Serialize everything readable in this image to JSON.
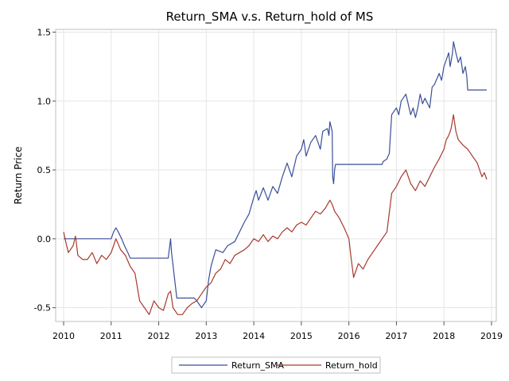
{
  "chart_data": {
    "type": "line",
    "title": "Return_SMA v.s. Return_hold of MS",
    "xlabel": "",
    "ylabel": "Return Price",
    "x_ticks": [
      "2010",
      "2011",
      "2012",
      "2013",
      "2014",
      "2015",
      "2016",
      "2017",
      "2018",
      "2019"
    ],
    "y_ticks": [
      "-0.5",
      "0.0",
      "0.5",
      "1.0",
      "1.5"
    ],
    "xlim": [
      2010.0,
      2019.0
    ],
    "ylim": [
      -0.6,
      1.52
    ],
    "grid": true,
    "legend_position": "bottom",
    "series": [
      {
        "name": "Return_SMA",
        "color": "#3a4f98",
        "points": [
          [
            2010.0,
            0.0
          ],
          [
            2011.0,
            0.0
          ],
          [
            2011.05,
            0.05
          ],
          [
            2011.1,
            0.08
          ],
          [
            2011.15,
            0.05
          ],
          [
            2011.22,
            0.0
          ],
          [
            2011.28,
            -0.05
          ],
          [
            2011.35,
            -0.1
          ],
          [
            2011.4,
            -0.14
          ],
          [
            2011.45,
            -0.14
          ],
          [
            2012.2,
            -0.14
          ],
          [
            2012.25,
            0.0
          ],
          [
            2012.27,
            -0.1
          ],
          [
            2012.32,
            -0.25
          ],
          [
            2012.38,
            -0.43
          ],
          [
            2012.75,
            -0.43
          ],
          [
            2012.8,
            -0.45
          ],
          [
            2012.9,
            -0.5
          ],
          [
            2013.0,
            -0.45
          ],
          [
            2013.05,
            -0.3
          ],
          [
            2013.1,
            -0.2
          ],
          [
            2013.2,
            -0.08
          ],
          [
            2013.35,
            -0.1
          ],
          [
            2013.45,
            -0.05
          ],
          [
            2013.6,
            -0.02
          ],
          [
            2013.7,
            0.05
          ],
          [
            2013.8,
            0.12
          ],
          [
            2013.9,
            0.18
          ],
          [
            2014.0,
            0.3
          ],
          [
            2014.05,
            0.35
          ],
          [
            2014.1,
            0.28
          ],
          [
            2014.2,
            0.37
          ],
          [
            2014.3,
            0.28
          ],
          [
            2014.4,
            0.38
          ],
          [
            2014.5,
            0.33
          ],
          [
            2014.6,
            0.45
          ],
          [
            2014.7,
            0.55
          ],
          [
            2014.8,
            0.45
          ],
          [
            2014.9,
            0.6
          ],
          [
            2015.0,
            0.65
          ],
          [
            2015.05,
            0.72
          ],
          [
            2015.1,
            0.6
          ],
          [
            2015.2,
            0.7
          ],
          [
            2015.3,
            0.75
          ],
          [
            2015.4,
            0.65
          ],
          [
            2015.45,
            0.78
          ],
          [
            2015.55,
            0.8
          ],
          [
            2015.58,
            0.75
          ],
          [
            2015.6,
            0.85
          ],
          [
            2015.65,
            0.78
          ],
          [
            2015.66,
            0.45
          ],
          [
            2015.68,
            0.4
          ],
          [
            2015.7,
            0.5
          ],
          [
            2015.72,
            0.54
          ],
          [
            2016.7,
            0.54
          ],
          [
            2016.72,
            0.56
          ],
          [
            2016.8,
            0.58
          ],
          [
            2016.85,
            0.62
          ],
          [
            2016.9,
            0.9
          ],
          [
            2017.0,
            0.95
          ],
          [
            2017.05,
            0.9
          ],
          [
            2017.1,
            1.0
          ],
          [
            2017.2,
            1.05
          ],
          [
            2017.3,
            0.9
          ],
          [
            2017.35,
            0.95
          ],
          [
            2017.4,
            0.88
          ],
          [
            2017.45,
            0.95
          ],
          [
            2017.5,
            1.05
          ],
          [
            2017.55,
            0.98
          ],
          [
            2017.6,
            1.02
          ],
          [
            2017.7,
            0.95
          ],
          [
            2017.75,
            1.1
          ],
          [
            2017.8,
            1.12
          ],
          [
            2017.9,
            1.2
          ],
          [
            2017.95,
            1.15
          ],
          [
            2018.0,
            1.25
          ],
          [
            2018.05,
            1.3
          ],
          [
            2018.1,
            1.35
          ],
          [
            2018.13,
            1.25
          ],
          [
            2018.18,
            1.35
          ],
          [
            2018.2,
            1.43
          ],
          [
            2018.25,
            1.35
          ],
          [
            2018.3,
            1.28
          ],
          [
            2018.35,
            1.32
          ],
          [
            2018.4,
            1.2
          ],
          [
            2018.45,
            1.25
          ],
          [
            2018.48,
            1.18
          ],
          [
            2018.5,
            1.08
          ],
          [
            2018.9,
            1.08
          ]
        ]
      },
      {
        "name": "Return_hold",
        "color": "#a63a2e",
        "points": [
          [
            2010.0,
            0.05
          ],
          [
            2010.05,
            -0.03
          ],
          [
            2010.1,
            -0.1
          ],
          [
            2010.2,
            -0.05
          ],
          [
            2010.25,
            0.02
          ],
          [
            2010.3,
            -0.12
          ],
          [
            2010.4,
            -0.15
          ],
          [
            2010.5,
            -0.15
          ],
          [
            2010.6,
            -0.1
          ],
          [
            2010.7,
            -0.18
          ],
          [
            2010.8,
            -0.12
          ],
          [
            2010.9,
            -0.15
          ],
          [
            2011.0,
            -0.1
          ],
          [
            2011.05,
            -0.05
          ],
          [
            2011.1,
            0.0
          ],
          [
            2011.2,
            -0.08
          ],
          [
            2011.3,
            -0.12
          ],
          [
            2011.4,
            -0.2
          ],
          [
            2011.5,
            -0.25
          ],
          [
            2011.6,
            -0.45
          ],
          [
            2011.7,
            -0.5
          ],
          [
            2011.8,
            -0.55
          ],
          [
            2011.9,
            -0.45
          ],
          [
            2012.0,
            -0.5
          ],
          [
            2012.1,
            -0.52
          ],
          [
            2012.2,
            -0.4
          ],
          [
            2012.25,
            -0.38
          ],
          [
            2012.3,
            -0.5
          ],
          [
            2012.4,
            -0.55
          ],
          [
            2012.5,
            -0.55
          ],
          [
            2012.6,
            -0.5
          ],
          [
            2012.7,
            -0.47
          ],
          [
            2012.8,
            -0.45
          ],
          [
            2012.9,
            -0.4
          ],
          [
            2013.0,
            -0.35
          ],
          [
            2013.1,
            -0.32
          ],
          [
            2013.2,
            -0.25
          ],
          [
            2013.3,
            -0.22
          ],
          [
            2013.4,
            -0.15
          ],
          [
            2013.5,
            -0.18
          ],
          [
            2013.6,
            -0.12
          ],
          [
            2013.7,
            -0.1
          ],
          [
            2013.8,
            -0.08
          ],
          [
            2013.9,
            -0.05
          ],
          [
            2014.0,
            0.0
          ],
          [
            2014.1,
            -0.02
          ],
          [
            2014.2,
            0.03
          ],
          [
            2014.3,
            -0.02
          ],
          [
            2014.4,
            0.02
          ],
          [
            2014.5,
            0.0
          ],
          [
            2014.6,
            0.05
          ],
          [
            2014.7,
            0.08
          ],
          [
            2014.8,
            0.05
          ],
          [
            2014.9,
            0.1
          ],
          [
            2015.0,
            0.12
          ],
          [
            2015.1,
            0.1
          ],
          [
            2015.2,
            0.15
          ],
          [
            2015.3,
            0.2
          ],
          [
            2015.4,
            0.18
          ],
          [
            2015.5,
            0.22
          ],
          [
            2015.6,
            0.28
          ],
          [
            2015.65,
            0.25
          ],
          [
            2015.7,
            0.2
          ],
          [
            2015.8,
            0.15
          ],
          [
            2015.9,
            0.08
          ],
          [
            2016.0,
            0.0
          ],
          [
            2016.05,
            -0.15
          ],
          [
            2016.1,
            -0.28
          ],
          [
            2016.2,
            -0.18
          ],
          [
            2016.3,
            -0.22
          ],
          [
            2016.4,
            -0.15
          ],
          [
            2016.5,
            -0.1
          ],
          [
            2016.6,
            -0.05
          ],
          [
            2016.7,
            0.0
          ],
          [
            2016.8,
            0.05
          ],
          [
            2016.9,
            0.33
          ],
          [
            2017.0,
            0.38
          ],
          [
            2017.1,
            0.45
          ],
          [
            2017.2,
            0.5
          ],
          [
            2017.3,
            0.4
          ],
          [
            2017.4,
            0.35
          ],
          [
            2017.5,
            0.42
          ],
          [
            2017.6,
            0.38
          ],
          [
            2017.7,
            0.45
          ],
          [
            2017.8,
            0.52
          ],
          [
            2017.9,
            0.58
          ],
          [
            2018.0,
            0.65
          ],
          [
            2018.05,
            0.72
          ],
          [
            2018.1,
            0.75
          ],
          [
            2018.15,
            0.8
          ],
          [
            2018.2,
            0.9
          ],
          [
            2018.25,
            0.78
          ],
          [
            2018.3,
            0.72
          ],
          [
            2018.4,
            0.68
          ],
          [
            2018.5,
            0.65
          ],
          [
            2018.6,
            0.6
          ],
          [
            2018.7,
            0.55
          ],
          [
            2018.8,
            0.45
          ],
          [
            2018.85,
            0.48
          ],
          [
            2018.9,
            0.43
          ]
        ]
      }
    ]
  }
}
